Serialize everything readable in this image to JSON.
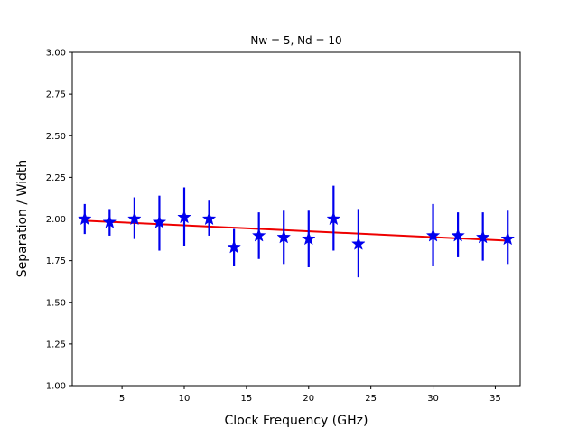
{
  "chart_data": {
    "type": "scatter",
    "title": "Nw = 5, Nd = 10",
    "xlabel": "Clock Frequency (GHz)",
    "ylabel": "Separation / Width",
    "xlim": [
      1.0,
      37.0
    ],
    "ylim": [
      1.0,
      3.0
    ],
    "xticks": [
      5,
      10,
      15,
      20,
      25,
      30,
      35
    ],
    "yticks": [
      1.0,
      1.25,
      1.5,
      1.75,
      2.0,
      2.25,
      2.5,
      2.75,
      3.0
    ],
    "xtick_labels": [
      "5",
      "10",
      "15",
      "20",
      "25",
      "30",
      "35"
    ],
    "ytick_labels": [
      "1.00",
      "1.25",
      "1.50",
      "1.75",
      "2.00",
      "2.25",
      "2.50",
      "2.75",
      "3.00"
    ],
    "grid": false,
    "series": [
      {
        "marker": "star",
        "color": "#0000ee",
        "x": [
          2,
          4,
          6,
          8,
          10,
          12,
          14,
          16,
          18,
          20,
          22,
          24,
          30,
          32,
          34,
          36
        ],
        "y": [
          2.0,
          1.98,
          2.0,
          1.98,
          2.01,
          2.0,
          1.83,
          1.9,
          1.89,
          1.88,
          2.0,
          1.85,
          1.9,
          1.9,
          1.89,
          1.88
        ],
        "yerr_low": [
          1.91,
          1.9,
          1.88,
          1.81,
          1.84,
          1.9,
          1.72,
          1.76,
          1.73,
          1.71,
          1.81,
          1.65,
          1.72,
          1.77,
          1.75,
          1.73
        ],
        "yerr_high": [
          2.09,
          2.06,
          2.13,
          2.14,
          2.19,
          2.11,
          1.94,
          2.04,
          2.05,
          2.05,
          2.2,
          2.06,
          2.09,
          2.04,
          2.04,
          2.05
        ]
      }
    ],
    "fit_line": {
      "color": "#ee0000",
      "x": [
        2,
        36
      ],
      "y": [
        1.99,
        1.87
      ]
    }
  }
}
